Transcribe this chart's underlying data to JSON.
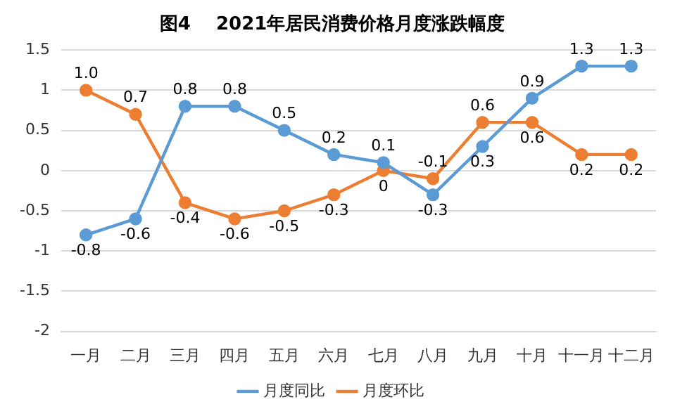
{
  "chart_data": {
    "type": "line",
    "title": "图4    2021年居民消费价格月度涨跌幅度",
    "categories": [
      "一月",
      "二月",
      "三月",
      "四月",
      "五月",
      "六月",
      "七月",
      "八月",
      "九月",
      "十月",
      "十一月",
      "十二月"
    ],
    "series": [
      {
        "name": "月度同比",
        "color": "#5b9bd5",
        "values": [
          -0.8,
          -0.6,
          0.8,
          0.8,
          0.5,
          0.2,
          0.1,
          -0.3,
          0.3,
          0.9,
          1.3,
          1.3
        ],
        "value_labels": [
          "-0.8",
          "-0.6",
          "0.8",
          "0.8",
          "0.5",
          "0.2",
          "0.1",
          "-0.3",
          "0.3",
          "0.9",
          "1.3",
          "1.3"
        ]
      },
      {
        "name": "月度环比",
        "color": "#ed7d31",
        "values": [
          1.0,
          0.7,
          -0.4,
          -0.6,
          -0.5,
          -0.3,
          0,
          -0.1,
          0.6,
          0.6,
          0.2,
          0.2
        ],
        "value_labels": [
          "1.0",
          "0.7",
          "-0.4",
          "-0.6",
          "-0.5",
          "-0.3",
          "0",
          "-0.1",
          "0.6",
          "0.6",
          "0.2",
          "0.2"
        ]
      }
    ],
    "ylim": [
      -2,
      1.5
    ],
    "yticks": [
      -2,
      -1.5,
      -1,
      -0.5,
      0,
      0.5,
      1,
      1.5
    ],
    "grid": "y",
    "legend": "bottom",
    "marker": "circle",
    "line_style": "solid"
  }
}
